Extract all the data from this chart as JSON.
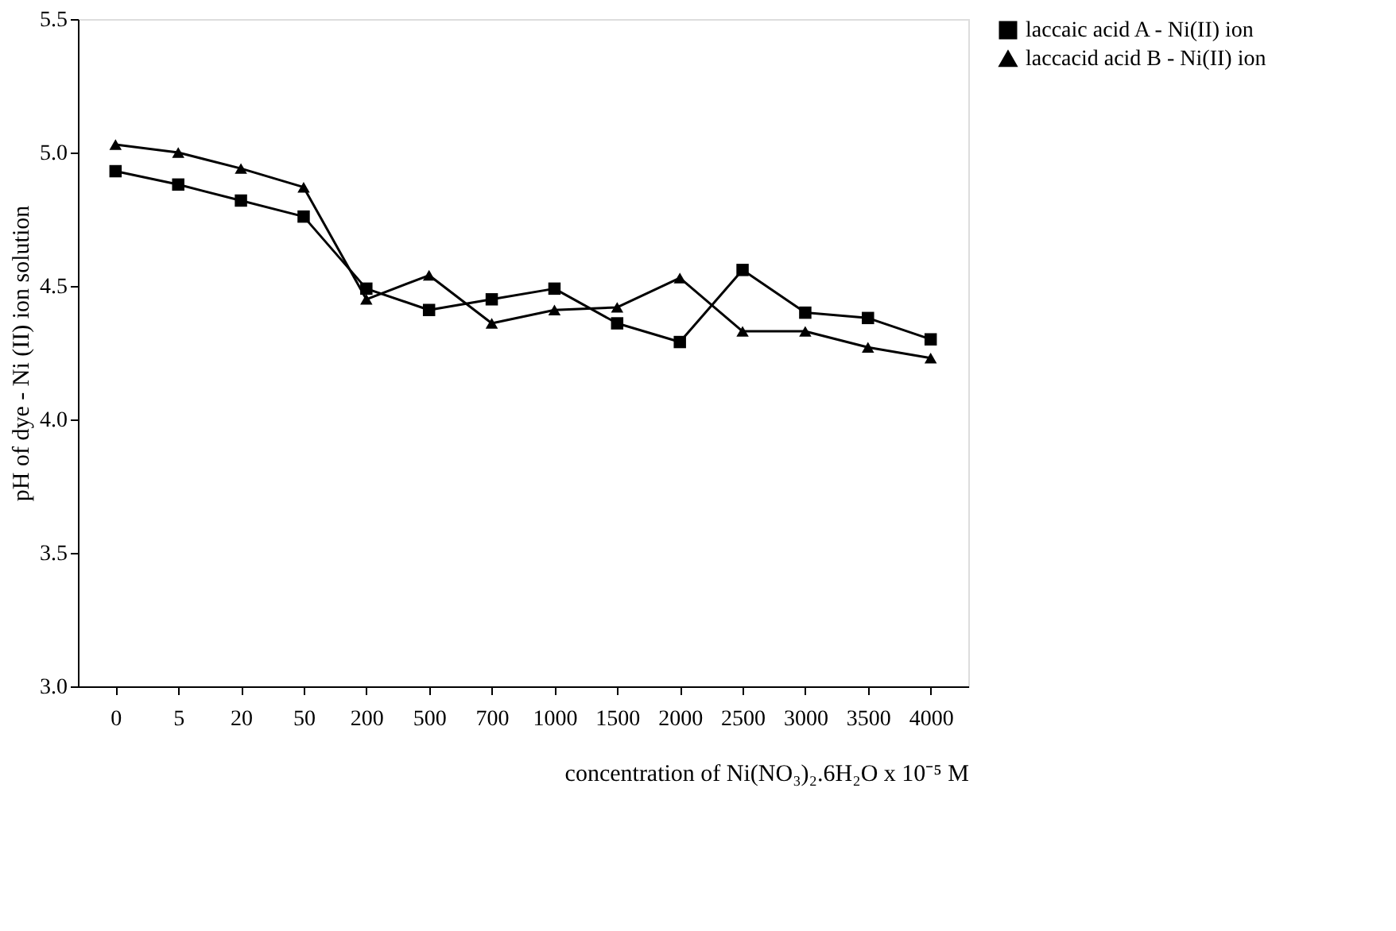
{
  "chart_data": {
    "type": "line",
    "xlabel": "concentration of  Ni(NO₃)₂.6H₂O x 10⁻⁵ M",
    "ylabel": "pH of dye - Ni (II) ion solution",
    "categories": [
      "0",
      "5",
      "20",
      "50",
      "200",
      "500",
      "700",
      "1000",
      "1500",
      "2000",
      "2500",
      "3000",
      "3500",
      "4000"
    ],
    "series": [
      {
        "name": "laccaic acid A -  Ni(II) ion",
        "color": "#000000",
        "marker": "square",
        "values": [
          4.93,
          4.88,
          4.82,
          4.76,
          4.49,
          4.41,
          4.45,
          4.49,
          4.36,
          4.29,
          4.56,
          4.4,
          4.38,
          4.3
        ]
      },
      {
        "name": "laccacid acid B - Ni(II) ion",
        "color": "#000000",
        "marker": "triangle",
        "values": [
          5.03,
          5.0,
          4.94,
          4.87,
          4.45,
          4.54,
          4.36,
          4.41,
          4.42,
          4.53,
          4.33,
          4.33,
          4.27,
          4.23
        ]
      }
    ],
    "ylim": [
      3.0,
      5.5
    ],
    "yticks": [
      {
        "value": 3,
        "label": "3.0"
      },
      {
        "value": 3.5,
        "label": "3.5"
      },
      {
        "value": 4,
        "label": "4.0"
      },
      {
        "value": 4.5,
        "label": "4.5"
      },
      {
        "value": 5,
        "label": "5.0"
      },
      {
        "value": 5.5,
        "label": "5.5"
      }
    ],
    "grid": false,
    "legend": "right",
    "line_style": "solid"
  }
}
